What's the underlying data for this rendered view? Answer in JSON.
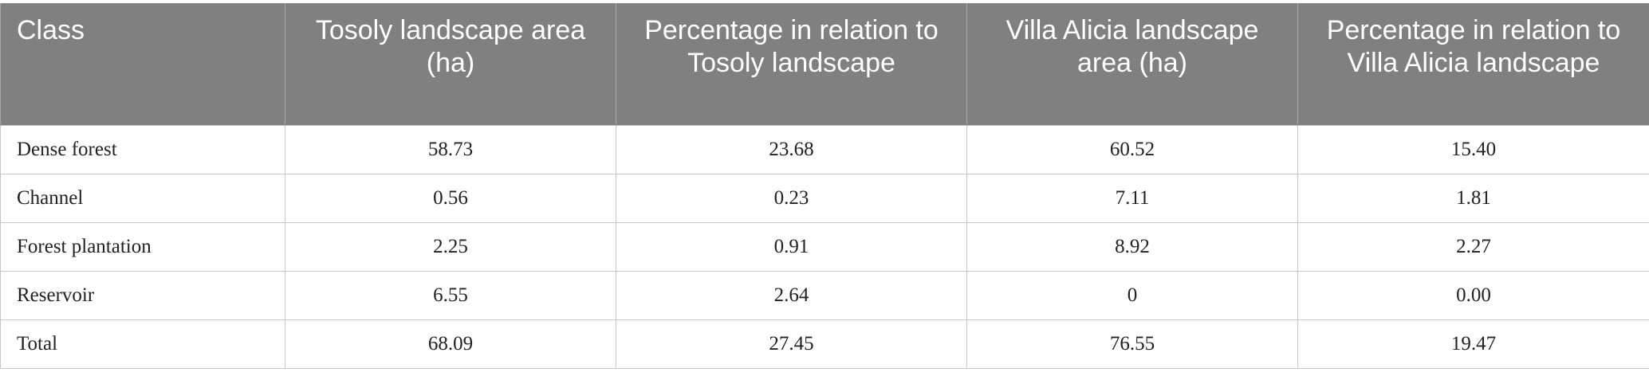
{
  "table": {
    "headers": [
      "Class",
      "Tosoly landscape area (ha)",
      "Percentage in relation to Tosoly landscape",
      "Villa Alicia landscape area (ha)",
      "Percentage in relation to Villa Alicia landscape"
    ],
    "rows": [
      [
        "Dense forest",
        "58.73",
        "23.68",
        "60.52",
        "15.40"
      ],
      [
        "Channel",
        "0.56",
        "0.23",
        "7.11",
        "1.81"
      ],
      [
        "Forest plantation",
        "2.25",
        "0.91",
        "8.92",
        "2.27"
      ],
      [
        "Reservoir",
        "6.55",
        "2.64",
        "0",
        "0.00"
      ],
      [
        "Total",
        "68.09",
        "27.45",
        "76.55",
        "19.47"
      ]
    ]
  },
  "colors": {
    "header_background": "#808080",
    "header_text": "#ffffff",
    "border": "#c8c8c8"
  }
}
